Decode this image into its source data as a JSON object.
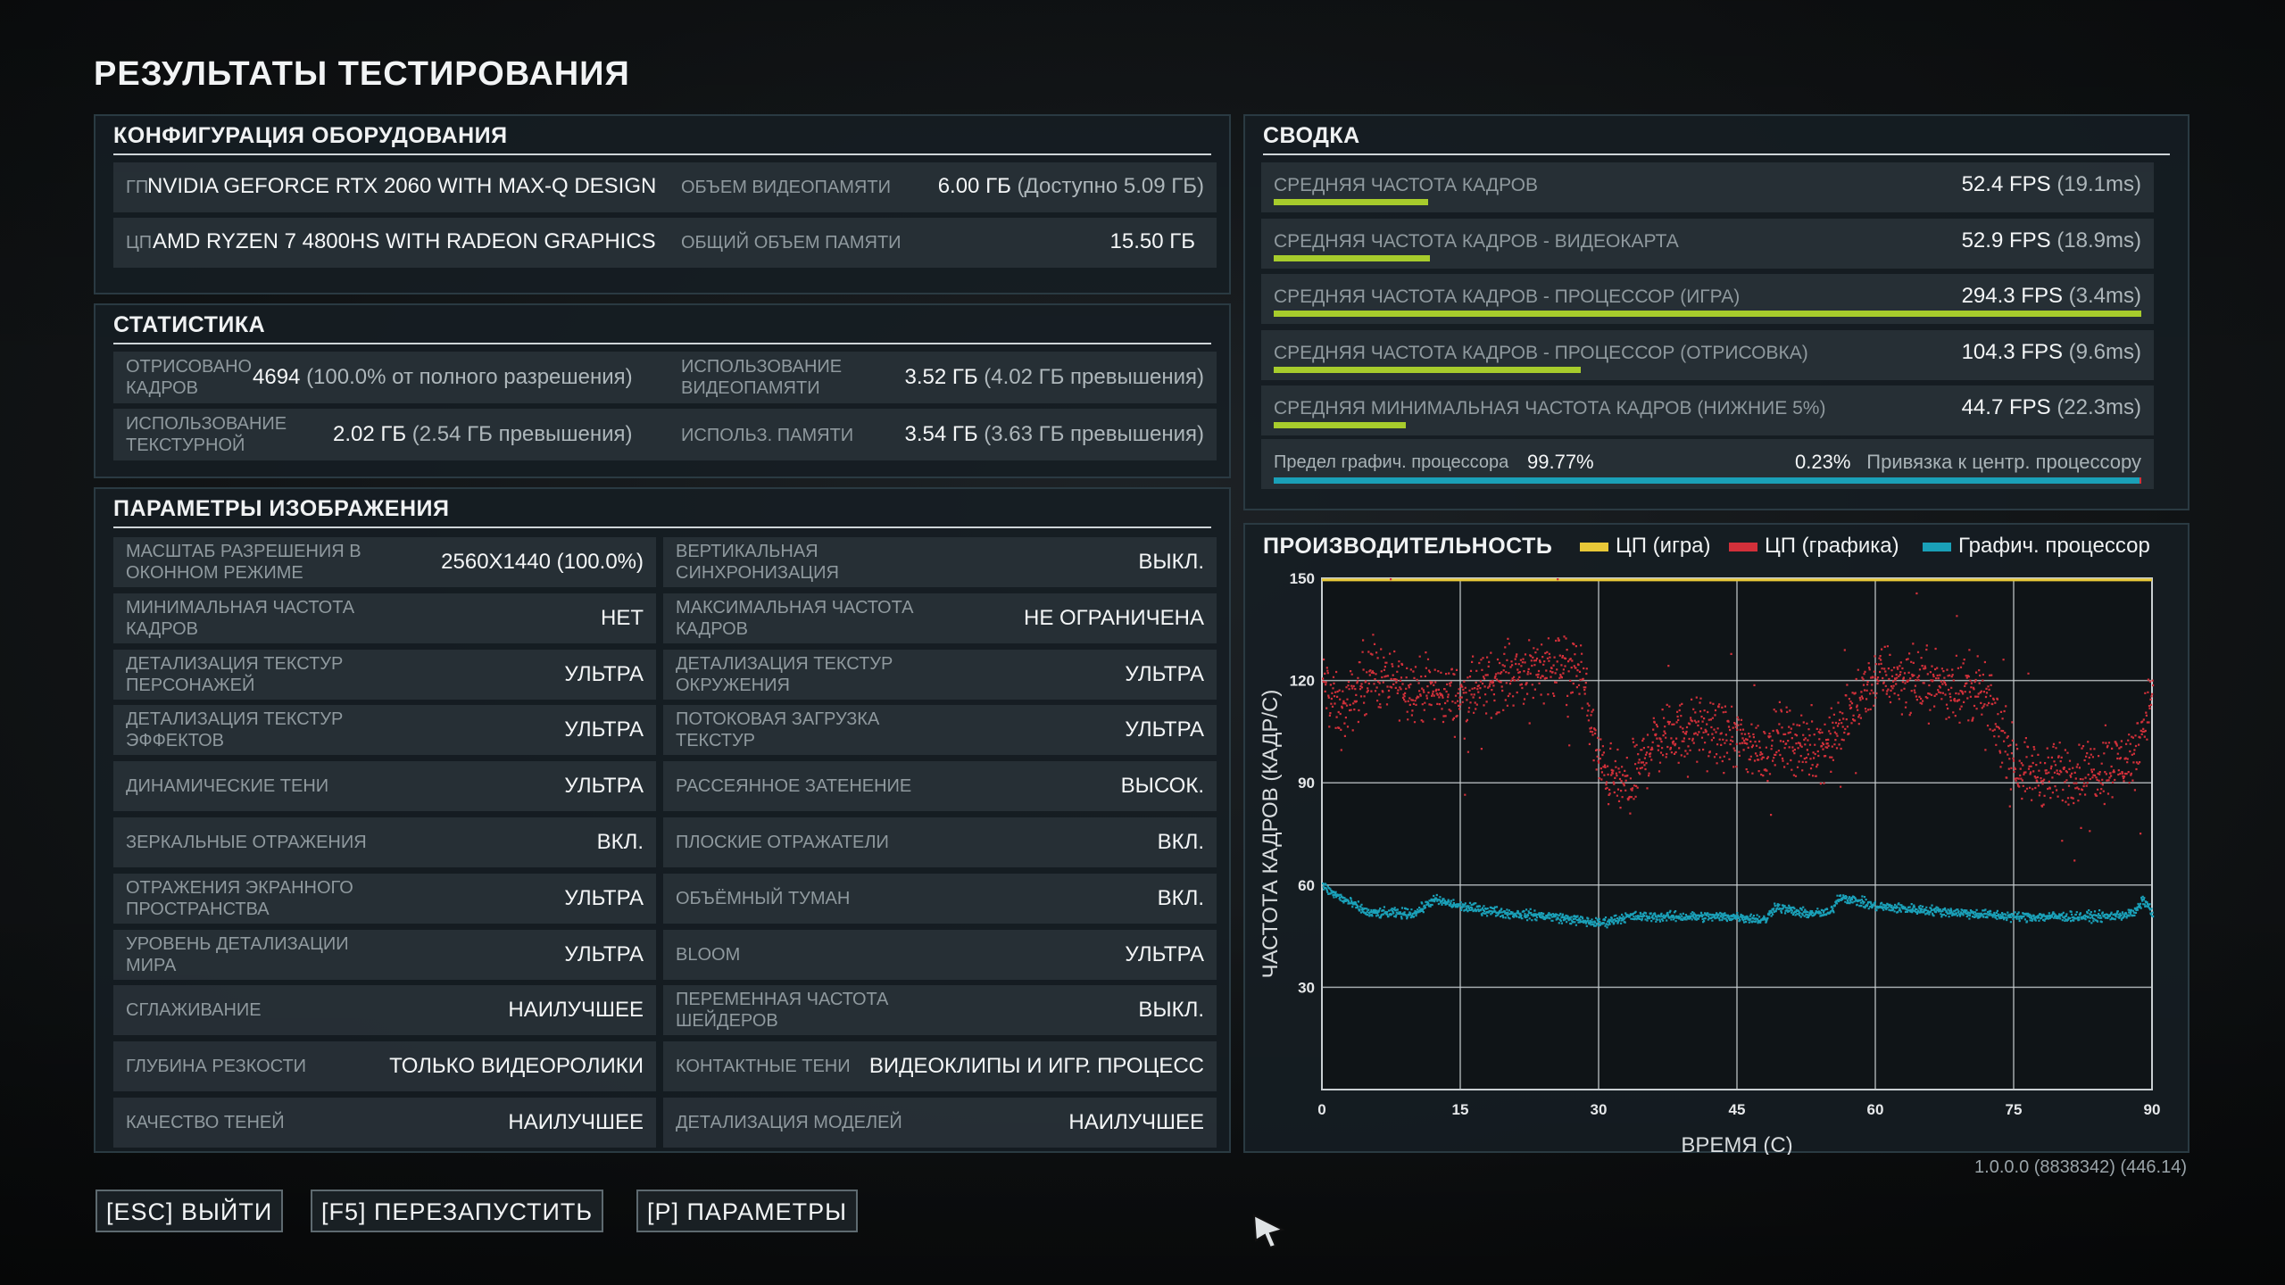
{
  "title": "РЕЗУЛЬТАТЫ ТЕСТИРОВАНИЯ",
  "hardware": {
    "title": "КОНФИГУРАЦИЯ ОБОРУДОВАНИЯ",
    "gpu_label": "ГП",
    "gpu_value": "NVIDIA GEFORCE RTX 2060 WITH MAX-Q DESIGN",
    "vram_label": "ОБЪЕМ ВИДЕОПАМЯТИ",
    "vram_value": "6.00 ГБ",
    "vram_avail": "(Доступно 5.09 ГБ)",
    "cpu_label": "ЦП",
    "cpu_value": "AMD RYZEN 7 4800HS WITH RADEON GRAPHICS",
    "mem_label": "ОБЩИЙ ОБЪЕМ ПАМЯТИ",
    "mem_value": "15.50 ГБ"
  },
  "stats": {
    "title": "СТАТИСТИКА",
    "render_label": "ОТРИСОВАНО КАДРОВ",
    "render_value": "4694",
    "render_note": "(100.0% от полного разрешения)",
    "vramuse_label": "ИСПОЛЬЗОВАНИЕ ВИДЕОПАМЯТИ",
    "vramuse_value": "3.52 ГБ",
    "vramuse_note": "(4.02 ГБ превышения)",
    "tex_label": "ИСПОЛЬЗОВАНИЕ ТЕКСТУРНОЙ",
    "tex_value": "2.02 ГБ",
    "tex_note": "(2.54 ГБ превышения)",
    "memuse_label": "ИСПОЛЬЗ. ПАМЯТИ",
    "memuse_value": "3.54 ГБ",
    "memuse_note": "(3.63 ГБ превышения)"
  },
  "graphics": {
    "title": "ПАРАМЕТРЫ ИЗОБРАЖЕНИЯ",
    "left": [
      {
        "label": "МАСШТАБ РАЗРЕШЕНИЯ В ОКОННОМ РЕЖИМЕ",
        "value": "2560X1440 (100.0%)"
      },
      {
        "label": "МИНИМАЛЬНАЯ ЧАСТОТА КАДРОВ",
        "value": "НЕТ"
      },
      {
        "label": "ДЕТАЛИЗАЦИЯ ТЕКСТУР ПЕРСОНАЖЕЙ",
        "value": "УЛЬТРА"
      },
      {
        "label": "ДЕТАЛИЗАЦИЯ ТЕКСТУР ЭФФЕКТОВ",
        "value": "УЛЬТРА"
      },
      {
        "label": "ДИНАМИЧЕСКИЕ ТЕНИ",
        "value": "УЛЬТРА"
      },
      {
        "label": "ЗЕРКАЛЬНЫЕ ОТРАЖЕНИЯ",
        "value": "ВКЛ."
      },
      {
        "label": "ОТРАЖЕНИЯ ЭКРАННОГО ПРОСТРАНСТВА",
        "value": "УЛЬТРА"
      },
      {
        "label": "УРОВЕНЬ ДЕТАЛИЗАЦИИ МИРА",
        "value": "УЛЬТРА"
      },
      {
        "label": "СГЛАЖИВАНИЕ",
        "value": "НАИЛУЧШЕЕ"
      },
      {
        "label": "ГЛУБИНА РЕЗКОСТИ",
        "value": "ТОЛЬКО ВИДЕОРОЛИКИ"
      },
      {
        "label": "КАЧЕСТВО ТЕНЕЙ",
        "value": "НАИЛУЧШЕЕ"
      }
    ],
    "right": [
      {
        "label": "ВЕРТИКАЛЬНАЯ СИНХРОНИЗАЦИЯ",
        "value": "ВЫКЛ."
      },
      {
        "label": "МАКСИМАЛЬНАЯ ЧАСТОТА КАДРОВ",
        "value": "НЕ ОГРАНИЧЕНА"
      },
      {
        "label": "ДЕТАЛИЗАЦИЯ ТЕКСТУР ОКРУЖЕНИЯ",
        "value": "УЛЬТРА"
      },
      {
        "label": "ПОТОКОВАЯ ЗАГРУЗКА ТЕКСТУР",
        "value": "УЛЬТРА"
      },
      {
        "label": "РАССЕЯННОЕ ЗАТЕНЕНИЕ",
        "value": "ВЫСОК."
      },
      {
        "label": "ПЛОСКИЕ ОТРАЖАТЕЛИ",
        "value": "ВКЛ."
      },
      {
        "label": "ОБЪЁМНЫЙ ТУМАН",
        "value": "ВКЛ."
      },
      {
        "label": "BLOOM",
        "value": "УЛЬТРА"
      },
      {
        "label": "ПЕРЕМЕННАЯ ЧАСТОТА ШЕЙДЕРОВ",
        "value": "ВЫКЛ."
      },
      {
        "label": "КОНТАКТНЫЕ ТЕНИ",
        "value": "ВИДЕОКЛИПЫ И ИГР. ПРОЦЕСС"
      },
      {
        "label": "ДЕТАЛИЗАЦИЯ МОДЕЛЕЙ",
        "value": "НАИЛУЧШЕЕ"
      }
    ]
  },
  "summary": {
    "title": "СВОДКА",
    "rows": [
      {
        "label": "СРЕДНЯЯ ЧАСТОТА КАДРОВ",
        "fps": "52.4 FPS",
        "ms": "(19.1ms)",
        "fill": 0.178
      },
      {
        "label": "СРЕДНЯЯ ЧАСТОТА КАДРОВ - ВИДЕОКАРТА",
        "fps": "52.9 FPS",
        "ms": "(18.9ms)",
        "fill": 0.18
      },
      {
        "label": "СРЕДНЯЯ ЧАСТОТА КАДРОВ - ПРОЦЕССОР (ИГРА)",
        "fps": "294.3 FPS",
        "ms": "(3.4ms)",
        "fill": 1.0
      },
      {
        "label": "СРЕДНЯЯ ЧАСТОТА КАДРОВ - ПРОЦЕССОР (ОТРИСОВКА)",
        "fps": "104.3 FPS",
        "ms": "(9.6ms)",
        "fill": 0.354
      },
      {
        "label": "СРЕДНЯЯ МИНИМАЛЬНАЯ ЧАСТОТА КАДРОВ (НИЖНИЕ 5%)",
        "fps": "44.7 FPS",
        "ms": "(22.3ms)",
        "fill": 0.152
      }
    ],
    "bound_left_label": "Предел графич. процессора",
    "bound_left_value": "99.77%",
    "bound_right_value": "0.23%",
    "bound_right_label": "Привязка к центр. процессору",
    "bound_gpu_fraction": 0.9977
  },
  "performance": {
    "title": "ПРОИЗВОДИТЕЛЬНОСТЬ",
    "legend": [
      {
        "name": "ЦП (игра)",
        "color": "#e8c838"
      },
      {
        "name": "ЦП (графика)",
        "color": "#d2303a"
      },
      {
        "name": "Графич. процессор",
        "color": "#1aa0b8"
      }
    ]
  },
  "chart_data": {
    "type": "scatter",
    "xlabel": "ВРЕМЯ (С)",
    "ylabel": "ЧАСТОТА КАДРОВ (КАДР/С)",
    "xlim": [
      0,
      90
    ],
    "ylim": [
      0,
      150
    ],
    "xticks": [
      0,
      15,
      30,
      45,
      60,
      75,
      90
    ],
    "yticks": [
      30,
      60,
      90,
      120,
      150
    ],
    "grid": true,
    "legend_position": "top",
    "series": [
      {
        "name": "ЦП (игра)",
        "color": "#e8c838",
        "x": [
          0,
          15,
          30,
          45,
          60,
          75,
          90
        ],
        "y": [
          150,
          150,
          150,
          150,
          150,
          150,
          150
        ]
      },
      {
        "name": "ЦП (графика)",
        "color": "#d2303a",
        "x": [
          0,
          2,
          5,
          10,
          15,
          20,
          25,
          28,
          30,
          33,
          36,
          40,
          45,
          48,
          50,
          52,
          55,
          60,
          65,
          70,
          72,
          75,
          78,
          82,
          85,
          88,
          90
        ],
        "y": [
          120,
          110,
          122,
          118,
          115,
          122,
          125,
          123,
          95,
          88,
          103,
          106,
          103,
          99,
          105,
          100,
          102,
          122,
          120,
          118,
          115,
          96,
          92,
          93,
          95,
          98,
          118
        ]
      },
      {
        "name": "Графич. процессор",
        "color": "#1aa0b8",
        "x": [
          0,
          1,
          3,
          5,
          10,
          12,
          15,
          20,
          25,
          30,
          33,
          40,
          45,
          48,
          49,
          52,
          55,
          56,
          60,
          65,
          70,
          75,
          80,
          85,
          88,
          89,
          90
        ],
        "y": [
          60,
          58,
          55,
          52,
          52,
          56,
          54,
          52,
          51,
          49,
          51,
          51,
          51,
          50,
          54,
          52,
          52,
          57,
          54,
          53,
          52,
          51,
          51,
          51,
          52,
          56,
          52
        ]
      }
    ]
  },
  "buttons": {
    "exit": "[ESC] ВЫЙТИ",
    "restart": "[F5] ПЕРЕЗАПУСТИТЬ",
    "params": "[P] ПАРАМЕТРЫ"
  },
  "version": "1.0.0.0 (8838342) (446.14)"
}
